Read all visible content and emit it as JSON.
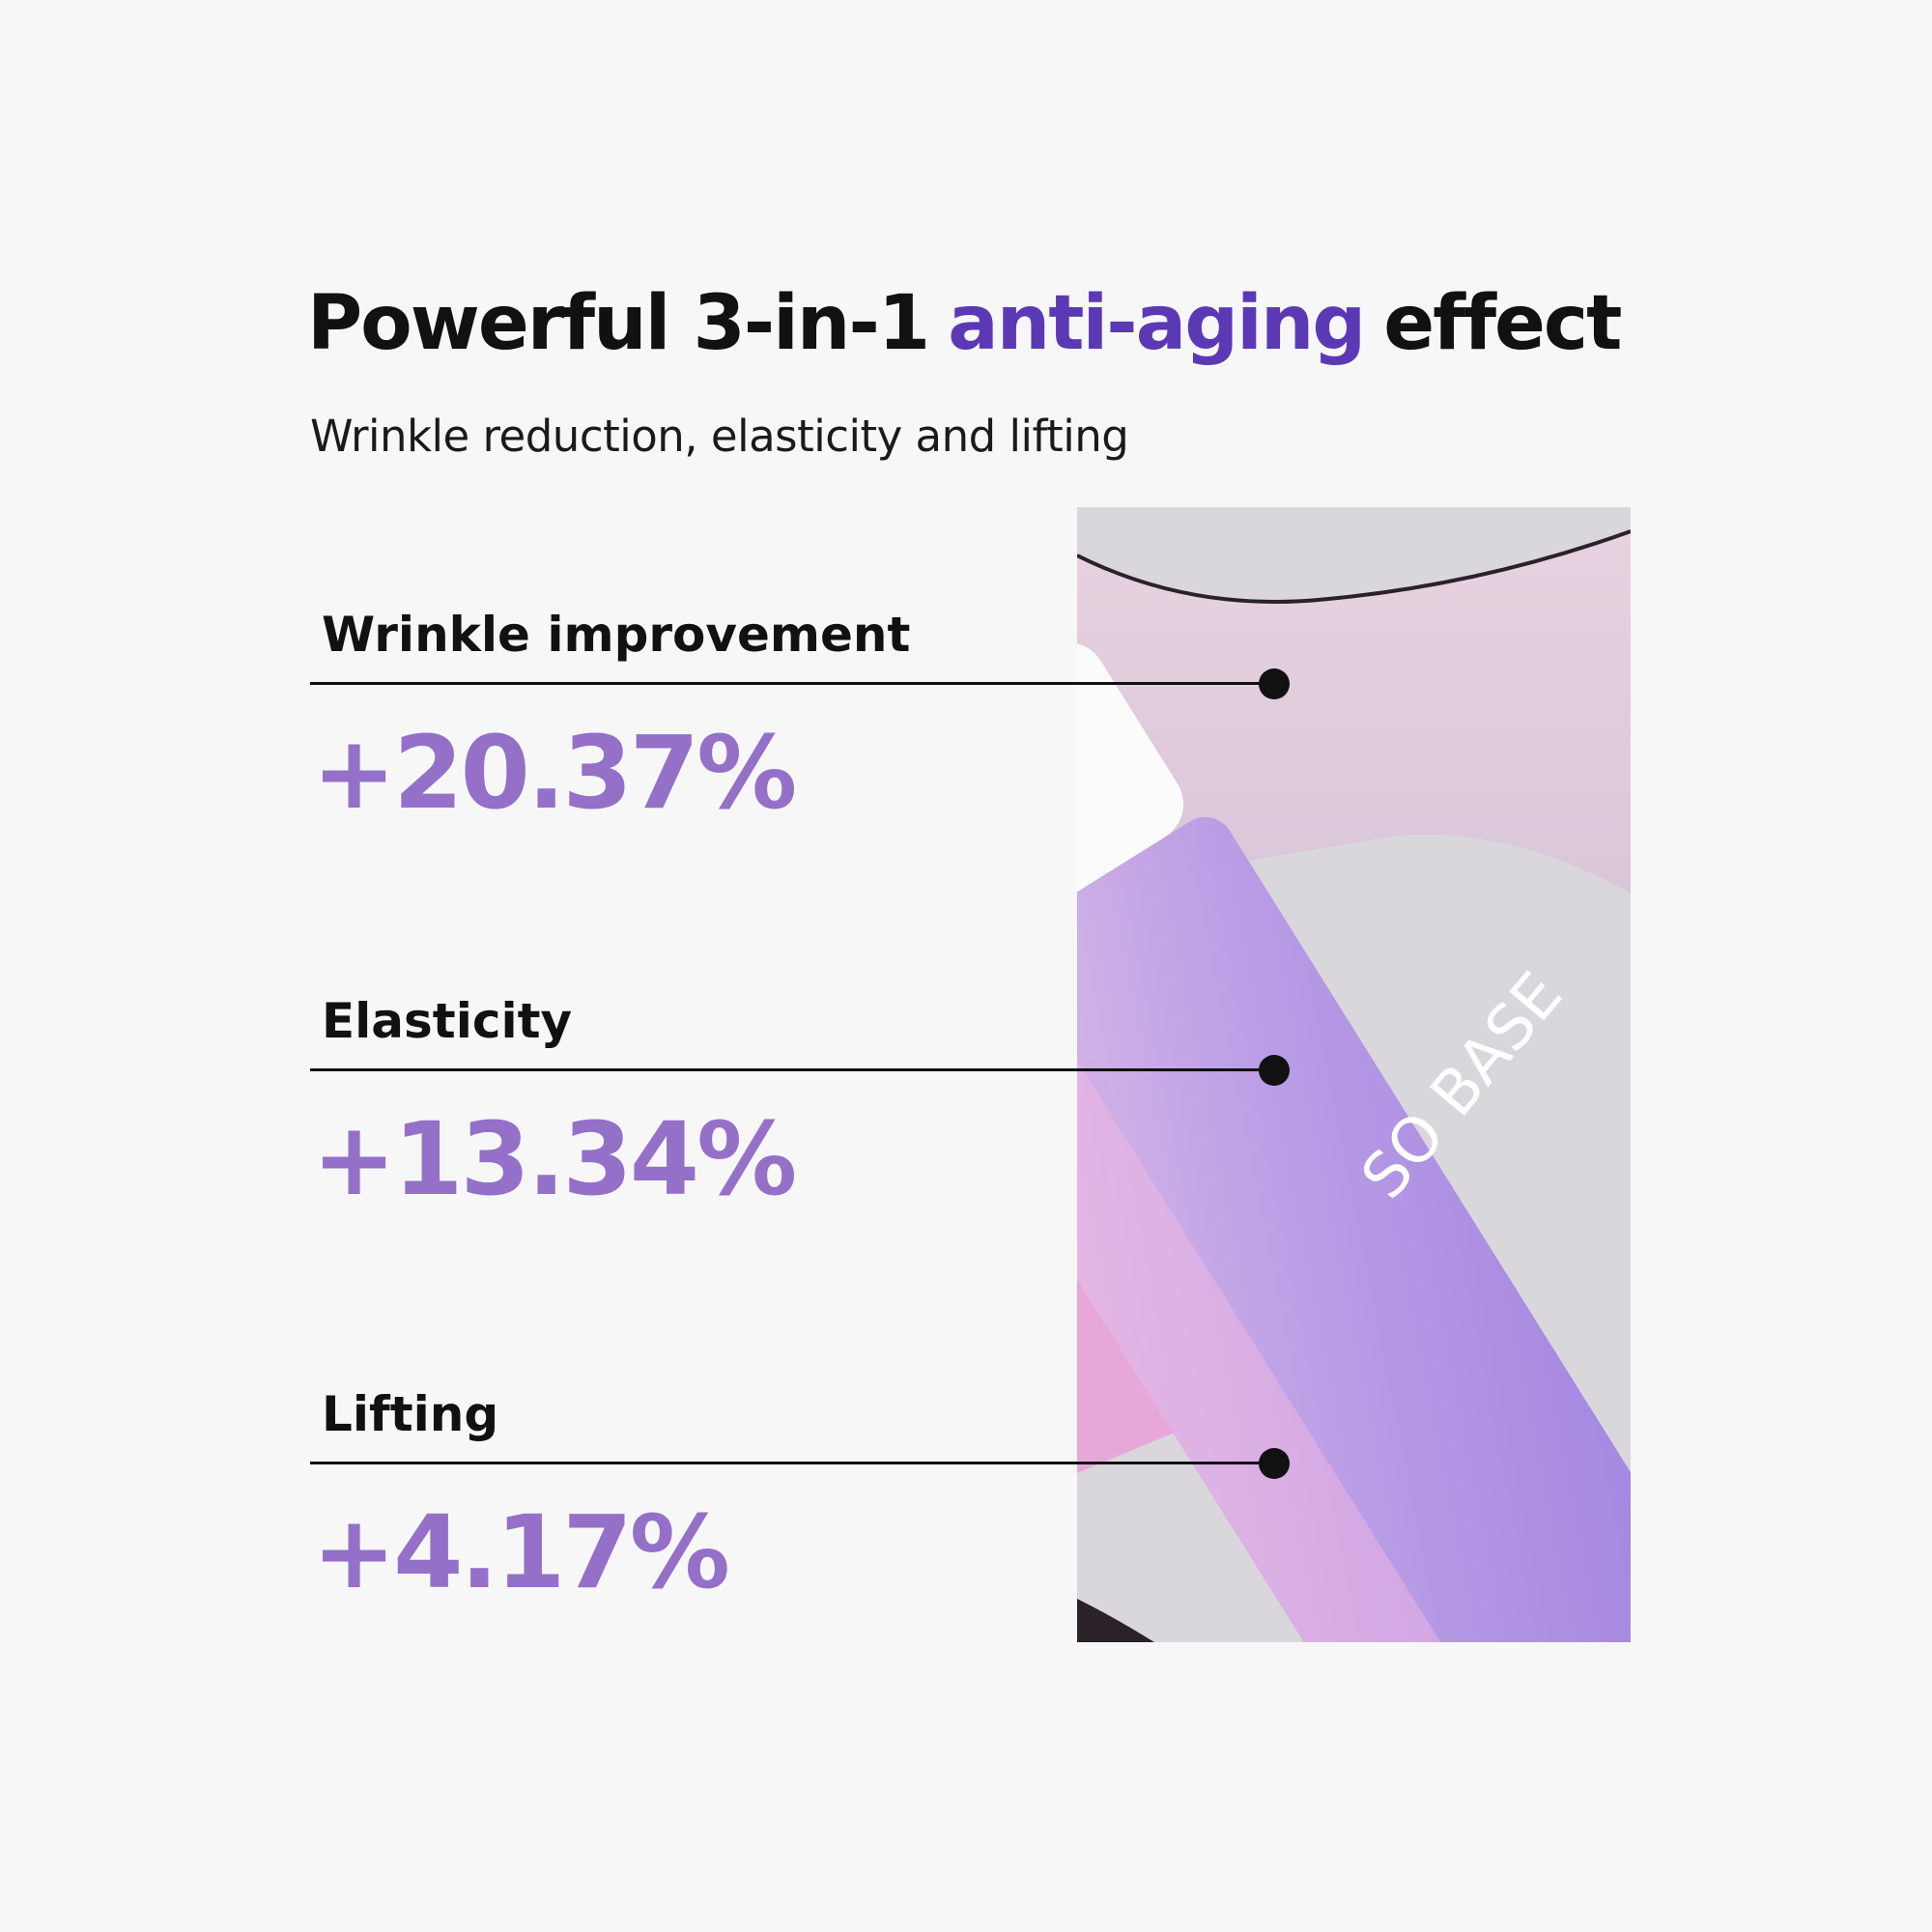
{
  "header": {
    "title": {
      "start": "Powerful 3-in-1",
      "highlight": "anti-aging",
      "end": "effect"
    },
    "subtitle": "Wrinkle reduction, elasticity and lifting"
  },
  "items": [
    {
      "label": "Wrinkle improvement",
      "value": "+20.37%"
    },
    {
      "label": "Elasticity",
      "value": "+13.34%"
    },
    {
      "label": "Lifting",
      "value": "+4.17%"
    }
  ],
  "image": {
    "label": "SO BASE"
  }
}
